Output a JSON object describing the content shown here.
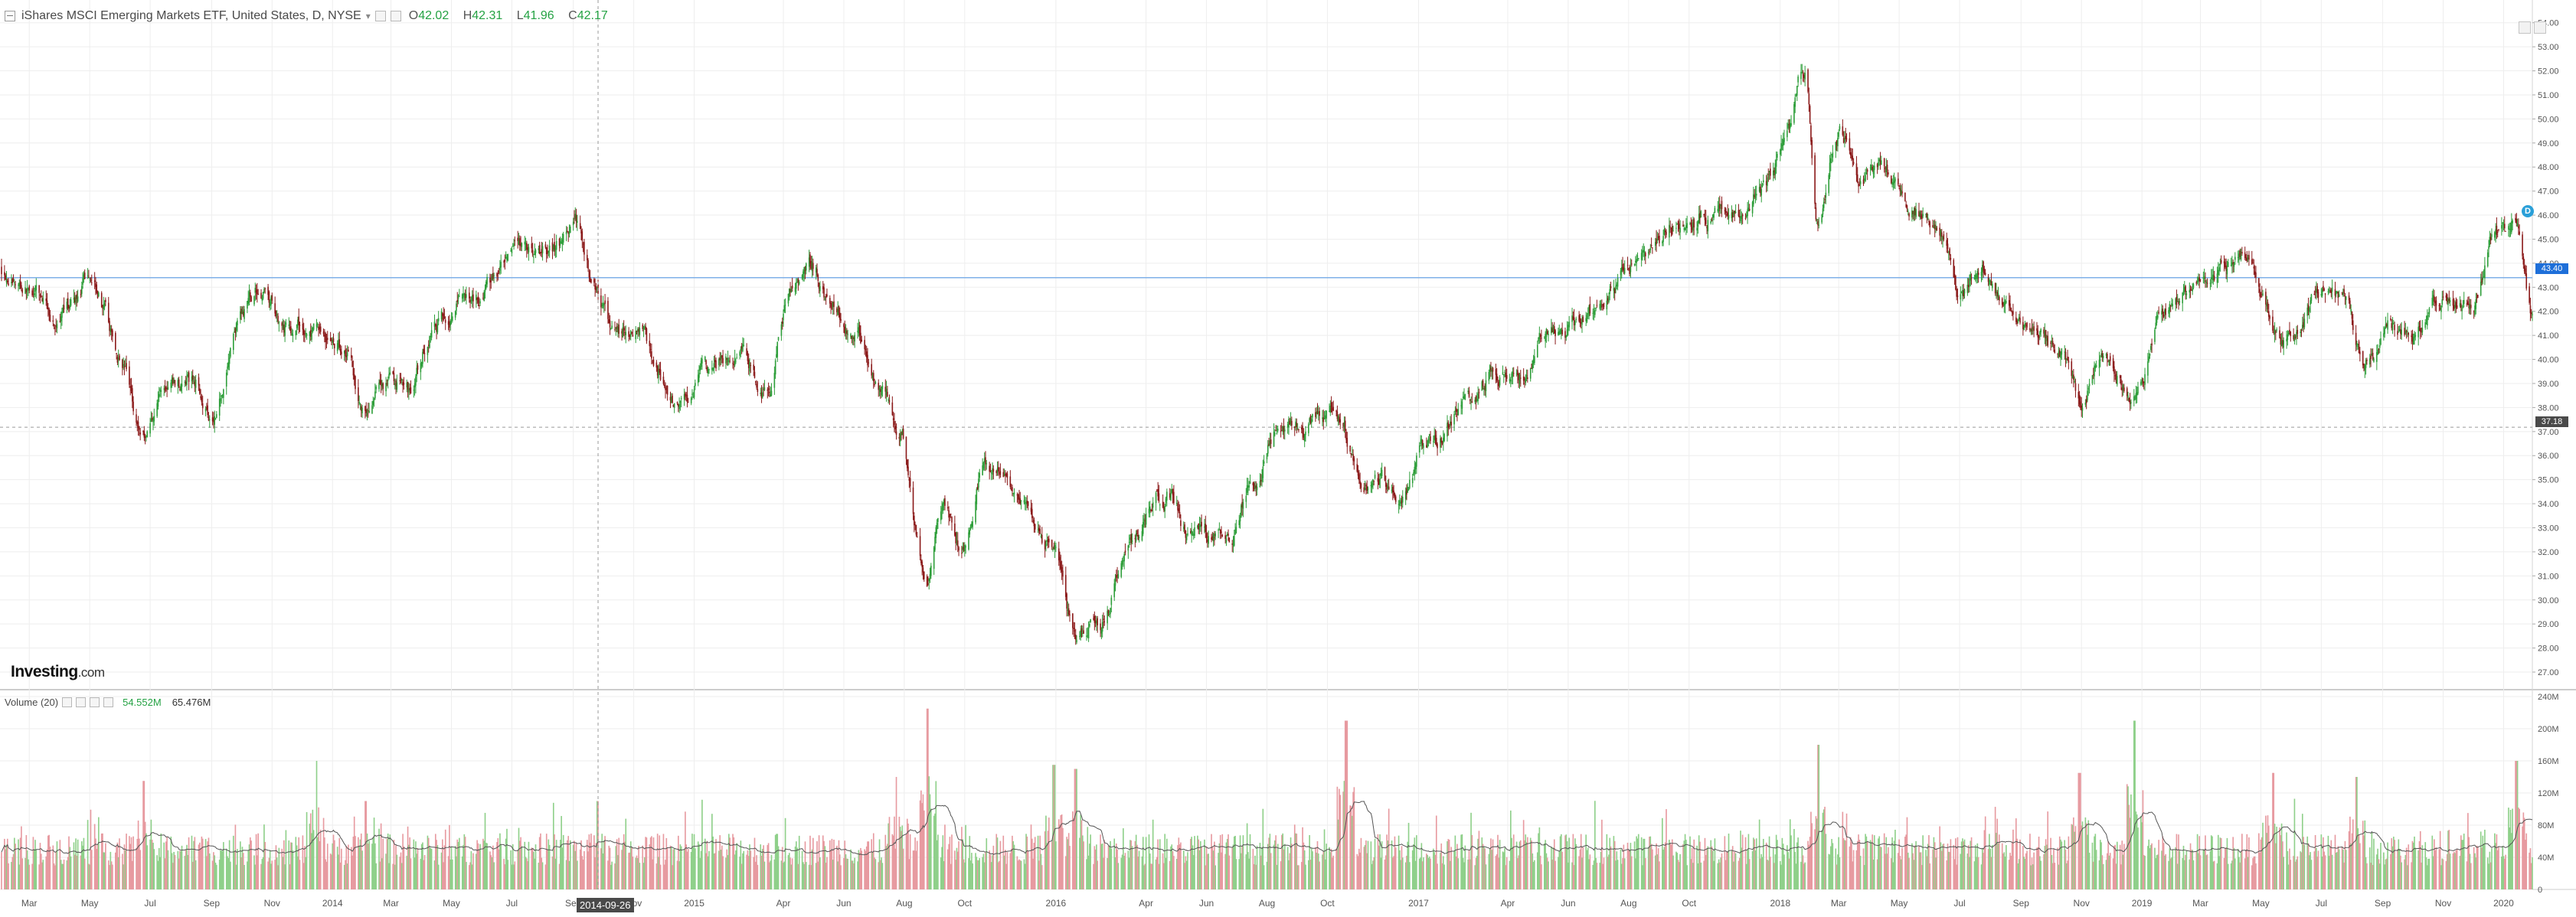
{
  "header": {
    "symbol_label": "iShares MSCI Emerging Markets ETF, United States, D, NYSE",
    "dropdown_glyph": "▾",
    "ohlc": [
      {
        "key": "O",
        "value": "42.02"
      },
      {
        "key": "H",
        "value": "42.31"
      },
      {
        "key": "L",
        "value": "41.96"
      },
      {
        "key": "C",
        "value": "42.17"
      }
    ]
  },
  "volume_header": {
    "label": "Volume (20)",
    "value_1": "54.552M",
    "value_2": "65.476M"
  },
  "logo": {
    "main": "Investing",
    "suffix": ".com"
  },
  "cursor_date_label": "2014-09-26",
  "price_badges": {
    "current": "43.40",
    "crosshair": "37.18"
  },
  "marker_glyph": "D",
  "colors": {
    "up": "#2e9e3a",
    "down": "#8b1a1a",
    "vol_up": "#8fd08a",
    "vol_down": "#e79aa0",
    "ma_line": "#555555",
    "grid": "#eeeeee",
    "hline": "#7fb0e8",
    "accent": "#1e6fd9"
  },
  "chart_data": [
    {
      "type": "candlestick",
      "title": "iShares MSCI Emerging Markets ETF, United States, D, NYSE",
      "xlabel": "",
      "ylabel": "",
      "ylim": [
        26.3,
        54.5
      ],
      "y_ticks": [
        "27.00",
        "28.00",
        "29.00",
        "30.00",
        "31.00",
        "32.00",
        "33.00",
        "34.00",
        "35.00",
        "36.00",
        "37.00",
        "38.00",
        "39.00",
        "40.00",
        "41.00",
        "42.00",
        "43.00",
        "44.00",
        "45.00",
        "46.00",
        "47.00",
        "48.00",
        "49.00",
        "50.00",
        "51.00",
        "52.00",
        "53.00",
        "54.00"
      ],
      "x_ticks": [
        {
          "label": "Mar",
          "date": "2013-03-01"
        },
        {
          "label": "May",
          "date": "2013-05-01"
        },
        {
          "label": "Jul",
          "date": "2013-07-01"
        },
        {
          "label": "Sep",
          "date": "2013-09-01"
        },
        {
          "label": "Nov",
          "date": "2013-11-01"
        },
        {
          "label": "2014",
          "date": "2014-01-01"
        },
        {
          "label": "Mar",
          "date": "2014-03-01"
        },
        {
          "label": "May",
          "date": "2014-05-01"
        },
        {
          "label": "Jul",
          "date": "2014-07-01"
        },
        {
          "label": "Sep",
          "date": "2014-09-01"
        },
        {
          "label": "Nov",
          "date": "2014-11-01"
        },
        {
          "label": "2015",
          "date": "2015-01-01"
        },
        {
          "label": "Apr",
          "date": "2015-04-01"
        },
        {
          "label": "Jun",
          "date": "2015-06-01"
        },
        {
          "label": "Aug",
          "date": "2015-08-01"
        },
        {
          "label": "Oct",
          "date": "2015-10-01"
        },
        {
          "label": "2016",
          "date": "2016-01-01"
        },
        {
          "label": "Apr",
          "date": "2016-04-01"
        },
        {
          "label": "Jun",
          "date": "2016-06-01"
        },
        {
          "label": "Aug",
          "date": "2016-08-01"
        },
        {
          "label": "Oct",
          "date": "2016-10-01"
        },
        {
          "label": "2017",
          "date": "2017-01-01"
        },
        {
          "label": "Apr",
          "date": "2017-04-01"
        },
        {
          "label": "Jun",
          "date": "2017-06-01"
        },
        {
          "label": "Aug",
          "date": "2017-08-01"
        },
        {
          "label": "Oct",
          "date": "2017-10-01"
        },
        {
          "label": "2018",
          "date": "2018-01-01"
        },
        {
          "label": "Mar",
          "date": "2018-03-01"
        },
        {
          "label": "May",
          "date": "2018-05-01"
        },
        {
          "label": "Jul",
          "date": "2018-07-01"
        },
        {
          "label": "Sep",
          "date": "2018-09-01"
        },
        {
          "label": "Nov",
          "date": "2018-11-01"
        },
        {
          "label": "2019",
          "date": "2019-01-01"
        },
        {
          "label": "Mar",
          "date": "2019-03-01"
        },
        {
          "label": "May",
          "date": "2019-05-01"
        },
        {
          "label": "Jul",
          "date": "2019-07-01"
        },
        {
          "label": "Sep",
          "date": "2019-09-01"
        },
        {
          "label": "Nov",
          "date": "2019-11-01"
        },
        {
          "label": "2020",
          "date": "2020-01-01"
        }
      ],
      "x_range": [
        "2013-02-01",
        "2020-01-30"
      ],
      "price_path": [
        {
          "date": "2013-02-01",
          "close": 43.8
        },
        {
          "date": "2013-03-01",
          "close": 43.0
        },
        {
          "date": "2013-04-01",
          "close": 41.5
        },
        {
          "date": "2013-05-05",
          "close": 43.5
        },
        {
          "date": "2013-06-01",
          "close": 40.0
        },
        {
          "date": "2013-06-24",
          "close": 37.0
        },
        {
          "date": "2013-07-15",
          "close": 39.0
        },
        {
          "date": "2013-08-15",
          "close": 39.0
        },
        {
          "date": "2013-09-01",
          "close": 38.0
        },
        {
          "date": "2013-10-01",
          "close": 41.8
        },
        {
          "date": "2013-10-20",
          "close": 43.0
        },
        {
          "date": "2013-11-15",
          "close": 41.5
        },
        {
          "date": "2013-12-15",
          "close": 41.0
        },
        {
          "date": "2014-01-15",
          "close": 40.5
        },
        {
          "date": "2014-02-03",
          "close": 38.0
        },
        {
          "date": "2014-03-01",
          "close": 39.0
        },
        {
          "date": "2014-03-20",
          "close": 38.8
        },
        {
          "date": "2014-04-15",
          "close": 41.5
        },
        {
          "date": "2014-05-15",
          "close": 42.5
        },
        {
          "date": "2014-06-15",
          "close": 43.3
        },
        {
          "date": "2014-07-15",
          "close": 44.0
        },
        {
          "date": "2014-08-15",
          "close": 44.6
        },
        {
          "date": "2014-09-03",
          "close": 45.5
        },
        {
          "date": "2014-09-20",
          "close": 43.5
        },
        {
          "date": "2014-10-10",
          "close": 41.5
        },
        {
          "date": "2014-11-01",
          "close": 41.0
        },
        {
          "date": "2014-12-16",
          "close": 38.0
        },
        {
          "date": "2015-01-15",
          "close": 39.5
        },
        {
          "date": "2015-02-15",
          "close": 40.5
        },
        {
          "date": "2015-03-15",
          "close": 39.0
        },
        {
          "date": "2015-04-10",
          "close": 43.0
        },
        {
          "date": "2015-04-28",
          "close": 44.0
        },
        {
          "date": "2015-05-20",
          "close": 42.5
        },
        {
          "date": "2015-06-15",
          "close": 41.0
        },
        {
          "date": "2015-07-08",
          "close": 38.5
        },
        {
          "date": "2015-07-25",
          "close": 37.5
        },
        {
          "date": "2015-08-24",
          "close": 31.0
        },
        {
          "date": "2015-09-10",
          "close": 33.5
        },
        {
          "date": "2015-09-28",
          "close": 32.0
        },
        {
          "date": "2015-10-20",
          "close": 35.5
        },
        {
          "date": "2015-11-10",
          "close": 35.0
        },
        {
          "date": "2015-12-01",
          "close": 33.5
        },
        {
          "date": "2015-12-30",
          "close": 32.0
        },
        {
          "date": "2016-01-21",
          "close": 28.3
        },
        {
          "date": "2016-02-15",
          "close": 29.0
        },
        {
          "date": "2016-03-15",
          "close": 32.5
        },
        {
          "date": "2016-04-20",
          "close": 34.5
        },
        {
          "date": "2016-05-15",
          "close": 33.0
        },
        {
          "date": "2016-06-27",
          "close": 32.5
        },
        {
          "date": "2016-07-15",
          "close": 35.0
        },
        {
          "date": "2016-08-15",
          "close": 37.0
        },
        {
          "date": "2016-09-15",
          "close": 37.3
        },
        {
          "date": "2016-10-10",
          "close": 37.5
        },
        {
          "date": "2016-11-10",
          "close": 35.0
        },
        {
          "date": "2016-12-15",
          "close": 34.5
        },
        {
          "date": "2017-01-15",
          "close": 36.5
        },
        {
          "date": "2017-02-15",
          "close": 38.0
        },
        {
          "date": "2017-03-15",
          "close": 39.5
        },
        {
          "date": "2017-04-15",
          "close": 39.5
        },
        {
          "date": "2017-05-15",
          "close": 41.0
        },
        {
          "date": "2017-06-15",
          "close": 41.5
        },
        {
          "date": "2017-07-15",
          "close": 43.0
        },
        {
          "date": "2017-08-15",
          "close": 44.0
        },
        {
          "date": "2017-09-15",
          "close": 45.5
        },
        {
          "date": "2017-10-15",
          "close": 46.0
        },
        {
          "date": "2017-11-15",
          "close": 46.5
        },
        {
          "date": "2017-12-15",
          "close": 47.0
        },
        {
          "date": "2018-01-08",
          "close": 49.5
        },
        {
          "date": "2018-01-26",
          "close": 52.0
        },
        {
          "date": "2018-02-09",
          "close": 46.0
        },
        {
          "date": "2018-03-01",
          "close": 49.5
        },
        {
          "date": "2018-03-25",
          "close": 47.5
        },
        {
          "date": "2018-04-15",
          "close": 48.0
        },
        {
          "date": "2018-05-15",
          "close": 46.5
        },
        {
          "date": "2018-06-15",
          "close": 45.5
        },
        {
          "date": "2018-07-01",
          "close": 42.5
        },
        {
          "date": "2018-07-25",
          "close": 44.0
        },
        {
          "date": "2018-08-15",
          "close": 42.5
        },
        {
          "date": "2018-09-10",
          "close": 41.5
        },
        {
          "date": "2018-10-15",
          "close": 40.0
        },
        {
          "date": "2018-10-30",
          "close": 38.5
        },
        {
          "date": "2018-11-20",
          "close": 40.5
        },
        {
          "date": "2018-12-24",
          "close": 38.5
        },
        {
          "date": "2019-01-25",
          "close": 42.0
        },
        {
          "date": "2019-03-01",
          "close": 43.0
        },
        {
          "date": "2019-04-15",
          "close": 44.5
        },
        {
          "date": "2019-05-15",
          "close": 41.0
        },
        {
          "date": "2019-06-01",
          "close": 40.5
        },
        {
          "date": "2019-06-25",
          "close": 42.8
        },
        {
          "date": "2019-07-25",
          "close": 42.5
        },
        {
          "date": "2019-08-15",
          "close": 39.5
        },
        {
          "date": "2019-09-10",
          "close": 41.0
        },
        {
          "date": "2019-10-01",
          "close": 40.5
        },
        {
          "date": "2019-11-01",
          "close": 42.5
        },
        {
          "date": "2019-12-02",
          "close": 42.5
        },
        {
          "date": "2019-12-20",
          "close": 45.0
        },
        {
          "date": "2020-01-14",
          "close": 46.5
        },
        {
          "date": "2020-01-30",
          "close": 42.2
        }
      ]
    },
    {
      "type": "bar",
      "title": "Volume (20)",
      "ylim": [
        0,
        240
      ],
      "y_unit": "M",
      "y_ticks": [
        "0",
        "40M",
        "80M",
        "120M",
        "160M",
        "200M",
        "240M"
      ],
      "series": [
        {
          "name": "Volume (20)",
          "typical_range": [
            30,
            70
          ]
        }
      ],
      "spikes": [
        {
          "date": "2013-06-24",
          "value": 135
        },
        {
          "date": "2013-12-15",
          "value": 160
        },
        {
          "date": "2014-02-03",
          "value": 110
        },
        {
          "date": "2014-09-26",
          "value": 110
        },
        {
          "date": "2015-07-25",
          "value": 140
        },
        {
          "date": "2015-08-24",
          "value": 225
        },
        {
          "date": "2015-12-30",
          "value": 155
        },
        {
          "date": "2016-01-21",
          "value": 150
        },
        {
          "date": "2016-10-20",
          "value": 210
        },
        {
          "date": "2018-02-09",
          "value": 180
        },
        {
          "date": "2018-10-30",
          "value": 145
        },
        {
          "date": "2018-12-24",
          "value": 210
        },
        {
          "date": "2019-05-13",
          "value": 145
        },
        {
          "date": "2019-08-05",
          "value": 140
        },
        {
          "date": "2020-01-14",
          "value": 160
        }
      ]
    }
  ]
}
